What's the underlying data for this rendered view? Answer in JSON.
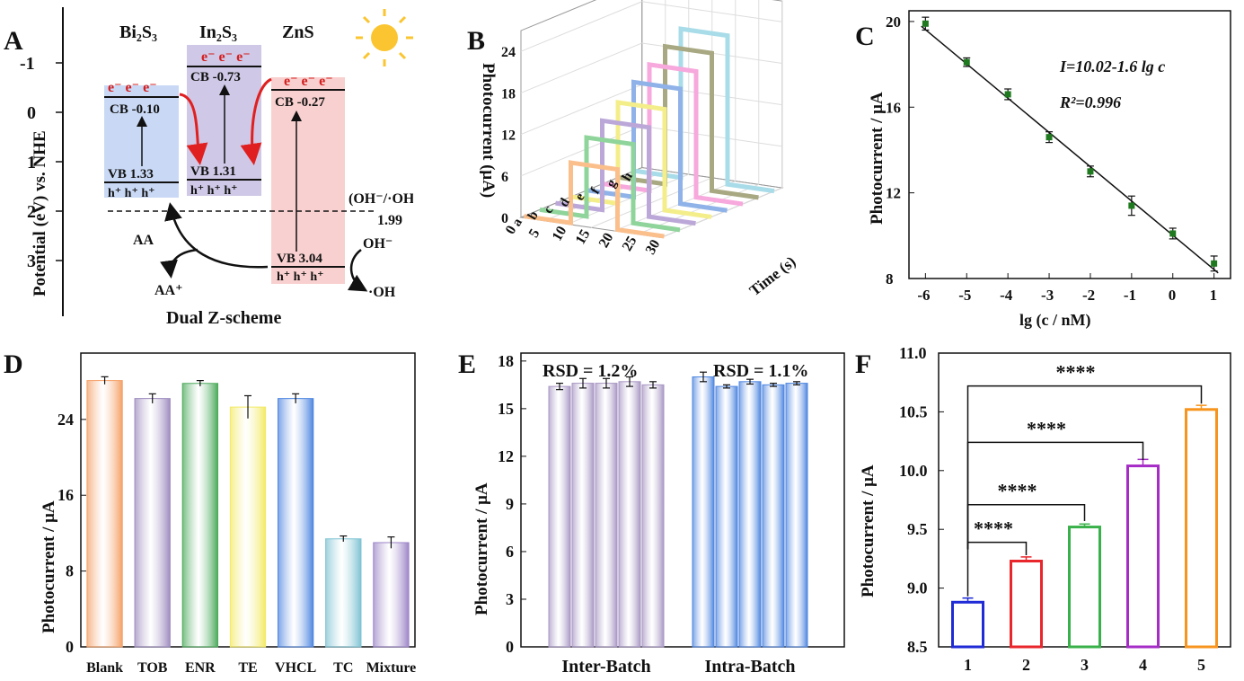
{
  "panels": {
    "A": {
      "letter": "A",
      "ylabel": "Potential (eV) vs. NHE",
      "yticks": [
        "-1",
        "0",
        "1",
        "2",
        "3"
      ],
      "materials": [
        "Bi₂S₃",
        "In₂S₃",
        "ZnS"
      ],
      "electron_label": "e⁻ e⁻ e⁻",
      "hole_label": "h⁺ h⁺ h⁺",
      "bands": [
        {
          "name": "Bi₂S₃",
          "cb": "CB -0.10",
          "vb": "VB 1.33",
          "cb_value": -0.1,
          "vb_value": 1.33,
          "color": "#c9d9f5"
        },
        {
          "name": "In₂S₃",
          "cb": "CB -0.73",
          "vb": "VB 1.31",
          "cb_value": -0.73,
          "vb_value": 1.31,
          "color": "#cfc8e6"
        },
        {
          "name": "ZnS",
          "cb": "CB -0.27",
          "vb": "VB 3.04",
          "cb_value": -0.27,
          "vb_value": 3.04,
          "color": "#f8d0cf"
        }
      ],
      "redox_couple": "(OH⁻/·OH)",
      "redox_value": "1.99",
      "aa": "AA",
      "aa_plus": "AA⁺",
      "oh_minus": "OH⁻",
      "oh_radical": "·OH",
      "scheme": "Dual Z-scheme"
    },
    "B": {
      "letter": "B",
      "ylabel": "Photocurrent (μA)",
      "xlabel": "Time (s)",
      "yticks": [
        "0",
        "6",
        "12",
        "18",
        "24"
      ],
      "timeticks": [
        "0",
        "5",
        "10",
        "15",
        "20",
        "25",
        "30"
      ],
      "series_labels": [
        "a",
        "b",
        "c",
        "d",
        "e",
        "f",
        "g",
        "h"
      ],
      "colors": [
        "#fbbf8c",
        "#8fd49a",
        "#bca8d8",
        "#f4ee8a",
        "#8fb2e8",
        "#f7a8dc",
        "#a8a882",
        "#a8dce8"
      ]
    },
    "C": {
      "letter": "C",
      "equation": "I=10.02-1.6 lg c",
      "r2": "R²=0.996"
    },
    "D": {
      "letter": "D"
    },
    "E": {
      "letter": "E",
      "rsd1": "RSD = 1.2%",
      "rsd2": "RSD = 1.1%"
    },
    "F": {
      "letter": "F",
      "stars": "****"
    }
  },
  "chart_data": [
    {
      "id": "B",
      "type": "line",
      "xlabel": "Time (s)",
      "ylabel": "Photocurrent (μA)",
      "xlim": [
        0,
        30
      ],
      "ylim": [
        0,
        24
      ],
      "series": [
        {
          "name": "a",
          "peak": 8.7,
          "on": 10,
          "off": 20
        },
        {
          "name": "b",
          "peak": 11.4,
          "on": 10,
          "off": 20
        },
        {
          "name": "c",
          "peak": 12.9,
          "on": 10,
          "off": 20
        },
        {
          "name": "d",
          "peak": 14.6,
          "on": 10,
          "off": 20
        },
        {
          "name": "e",
          "peak": 16.6,
          "on": 10,
          "off": 20
        },
        {
          "name": "f",
          "peak": 18.2,
          "on": 10,
          "off": 20
        },
        {
          "name": "g",
          "peak": 19.9,
          "on": 10,
          "off": 20
        },
        {
          "name": "h",
          "peak": 21.5,
          "on": 10,
          "off": 20
        }
      ]
    },
    {
      "id": "C",
      "type": "scatter",
      "xlabel": "lg (c / nM)",
      "ylabel": "Photocurrent / μA",
      "x": [
        -6,
        -5,
        -4,
        -3,
        -2,
        -1,
        0,
        1
      ],
      "y": [
        19.9,
        18.1,
        16.6,
        14.6,
        13.0,
        11.4,
        10.1,
        8.7
      ],
      "err": [
        0.3,
        0.2,
        0.25,
        0.25,
        0.25,
        0.45,
        0.25,
        0.35
      ],
      "fit": {
        "intercept": 10.02,
        "slope": -1.6
      },
      "xlim": [
        -6.4,
        1.4
      ],
      "ylim": [
        8,
        20.5
      ],
      "xticks": [
        "-6",
        "-5",
        "-4",
        "-3",
        "-2",
        "-1",
        "0",
        "1"
      ],
      "yticks": [
        "8",
        "12",
        "16",
        "20"
      ]
    },
    {
      "id": "D",
      "type": "bar",
      "ylabel": "Photocurrent / μA",
      "categories": [
        "Blank",
        "TOB",
        "ENR",
        "TE",
        "VHCL",
        "TC",
        "Mixture"
      ],
      "values": [
        28.1,
        26.2,
        27.8,
        25.3,
        26.2,
        11.4,
        11.0
      ],
      "err": [
        0.4,
        0.5,
        0.3,
        1.2,
        0.5,
        0.3,
        0.6
      ],
      "colors": [
        "#f5a066",
        "#9e8cbf",
        "#4caa5c",
        "#f3ea66",
        "#4f86e0",
        "#7ec3d3",
        "#9d86c8"
      ],
      "ylim": [
        0,
        31
      ],
      "yticks": [
        "0",
        "8",
        "16",
        "24"
      ]
    },
    {
      "id": "E",
      "type": "bar",
      "ylabel": "Photocurrent / μA",
      "groups": [
        "Inter-Batch",
        "Intra-Batch"
      ],
      "values": [
        [
          16.4,
          16.6,
          16.6,
          16.7,
          16.5
        ],
        [
          17.0,
          16.4,
          16.7,
          16.5,
          16.6
        ]
      ],
      "err": [
        [
          0.2,
          0.3,
          0.3,
          0.3,
          0.2
        ],
        [
          0.3,
          0.1,
          0.15,
          0.1,
          0.1
        ]
      ],
      "colors": [
        "#a897c4",
        "#4f86e0"
      ],
      "ylim": [
        0,
        18.5
      ],
      "yticks": [
        "0",
        "3",
        "6",
        "9",
        "12",
        "15",
        "18"
      ]
    },
    {
      "id": "F",
      "type": "bar",
      "ylabel": "Photocurrent / μA",
      "categories": [
        "1",
        "2",
        "3",
        "4",
        "5"
      ],
      "values": [
        8.88,
        9.23,
        9.52,
        10.04,
        10.52
      ],
      "err": [
        0.02,
        0.02,
        0.01,
        0.04,
        0.02
      ],
      "colors": [
        "#1f2bd6",
        "#e8262b",
        "#39b14a",
        "#a62cc7",
        "#f7941d"
      ],
      "ylim": [
        8.5,
        11.0
      ],
      "yticks": [
        "8.5",
        "9.0",
        "9.5",
        "10.0",
        "10.5",
        "11.0"
      ]
    }
  ]
}
